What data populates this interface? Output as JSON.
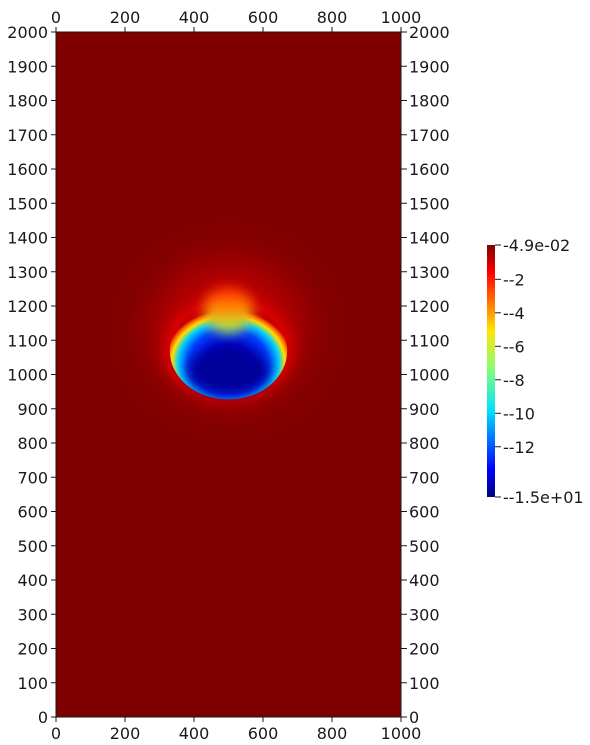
{
  "chart_data": {
    "type": "heatmap",
    "title": "",
    "xlabel": "",
    "ylabel": "",
    "xlim": [
      0,
      1000
    ],
    "ylim": [
      0,
      2000
    ],
    "x_ticks": [
      0,
      200,
      400,
      600,
      800,
      1000
    ],
    "y_ticks": [
      0,
      100,
      200,
      300,
      400,
      500,
      600,
      700,
      800,
      900,
      1000,
      1100,
      1200,
      1300,
      1400,
      1500,
      1600,
      1700,
      1800,
      1900,
      2000
    ],
    "x_ticks_shown_top_and_bottom": true,
    "y_ticks_shown_left_and_right": true,
    "background_value": 0.049,
    "feature": {
      "shape": "crescent-bubble",
      "center_x": 500,
      "center_y": 1080,
      "radius_x": 170,
      "radius_y": 160,
      "min_value": -15,
      "min_region_center": [
        500,
        1010
      ],
      "warm_halo_top_y": 1400
    },
    "colorbar": {
      "colormap": "jet",
      "min": -15,
      "max": 0.049,
      "min_label": "-1.5e+01",
      "max_label": "4.9e-02",
      "tick_values": [
        -2,
        -4,
        -6,
        -8,
        -10,
        -12
      ],
      "tick_labels": [
        "-2",
        "-4",
        "-6",
        "-8",
        "-10",
        "-12"
      ],
      "placement": "right"
    },
    "grid": false
  }
}
